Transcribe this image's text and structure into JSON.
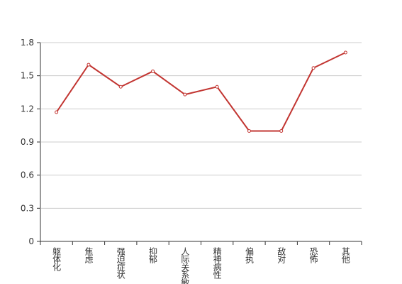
{
  "chart_data": {
    "type": "line",
    "categories": [
      "躯体化",
      "焦虑",
      "强迫症状",
      "抑郁",
      "人际关系敏感",
      "精神病性",
      "偏执",
      "敌对",
      "恐怖",
      "其他"
    ],
    "values": [
      1.17,
      1.6,
      1.4,
      1.54,
      1.33,
      1.4,
      1.0,
      1.0,
      1.57,
      1.71
    ],
    "color": "#c23531",
    "ylim": [
      0,
      1.8
    ],
    "yticks": [
      0,
      0.3,
      0.6,
      0.9,
      1.2,
      1.5,
      1.8
    ],
    "grid": true
  }
}
